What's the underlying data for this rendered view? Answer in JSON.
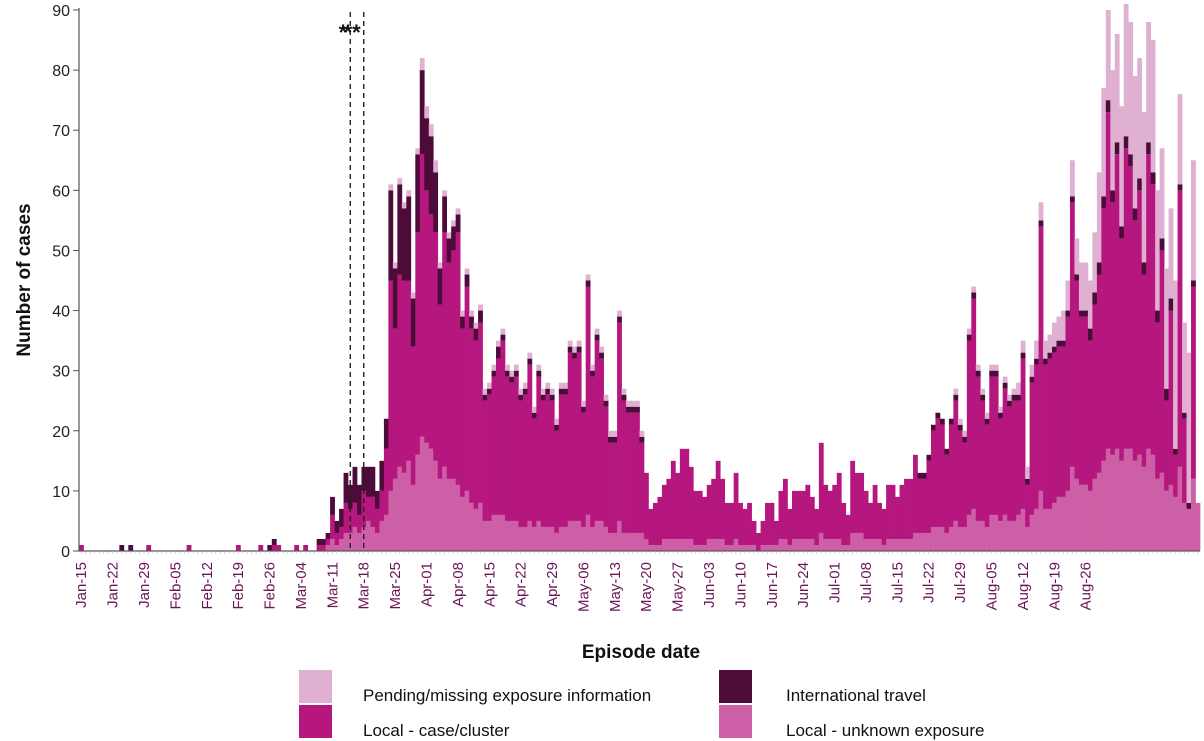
{
  "chart_data": {
    "type": "stacked-bar",
    "xlabel": "Episode date",
    "ylabel": "Number of cases",
    "ylim": [
      0,
      90
    ],
    "yticks": [
      0,
      10,
      20,
      30,
      40,
      50,
      60,
      70,
      80,
      90
    ],
    "grid": false,
    "start_date": "Jan-15",
    "x_tick_labels": [
      "Jan-15",
      "Jan-22",
      "Jan-29",
      "Feb-05",
      "Feb-12",
      "Feb-19",
      "Feb-26",
      "Mar-04",
      "Mar-11",
      "Mar-18",
      "Mar-25",
      "Apr-01",
      "Apr-08",
      "Apr-15",
      "Apr-22",
      "Apr-29",
      "May-06",
      "May-13",
      "May-20",
      "May-27",
      "Jun-03",
      "Jun-10",
      "Jun-17",
      "Jun-24",
      "Jul-01",
      "Jul-08",
      "Jul-15",
      "Jul-22",
      "Jul-29",
      "Aug-05",
      "Aug-12",
      "Aug-19",
      "Aug-26"
    ],
    "annotations": [
      {
        "label": "*",
        "date": "Mar-16"
      },
      {
        "label": "**",
        "date": "Mar-19"
      }
    ],
    "legend_position": "bottom",
    "series": [
      {
        "name": "Local - unknown exposure",
        "color": "#cc5fa5",
        "values": [
          0,
          0,
          0,
          0,
          0,
          0,
          0,
          0,
          0,
          0,
          0,
          0,
          0,
          0,
          0,
          0,
          0,
          0,
          0,
          0,
          0,
          0,
          0,
          0,
          0,
          0,
          0,
          0,
          0,
          0,
          0,
          0,
          0,
          0,
          0,
          0,
          0,
          0,
          0,
          0,
          0,
          0,
          0,
          0,
          0,
          0,
          0,
          0,
          0,
          0,
          0,
          0,
          0,
          0,
          0,
          0,
          0,
          0,
          0,
          0,
          0,
          0,
          0,
          0,
          0,
          0,
          0,
          0,
          0,
          0,
          0,
          0,
          0,
          0,
          0,
          0,
          0,
          0,
          0,
          0,
          0,
          0,
          0,
          0,
          0,
          0,
          0,
          0,
          0,
          0,
          0,
          0,
          0,
          0,
          0,
          0,
          0,
          0,
          0,
          0,
          0,
          0,
          0,
          0,
          0,
          0,
          0,
          0,
          0,
          0,
          0,
          0,
          0,
          0,
          0,
          0,
          0,
          0,
          0,
          0,
          0,
          0,
          0,
          0,
          0,
          0,
          0,
          0,
          0,
          0,
          0,
          0,
          0,
          0,
          0,
          0,
          0,
          0,
          0,
          0,
          0,
          0,
          0,
          0,
          0,
          0,
          0,
          0,
          0,
          0,
          0,
          0,
          0,
          0,
          0,
          0,
          0,
          0,
          0,
          0,
          0,
          0,
          0,
          0,
          0,
          0,
          0,
          0,
          0,
          0,
          0,
          0,
          0,
          0,
          0,
          0,
          0,
          0,
          0,
          0,
          0,
          0,
          0,
          0,
          0,
          0,
          0,
          0,
          0,
          0,
          0,
          0,
          0,
          0,
          0,
          0,
          0,
          0,
          0,
          0,
          0,
          0,
          0,
          0,
          0,
          0,
          0,
          0,
          0,
          0,
          0,
          0,
          0,
          0,
          0,
          0,
          0,
          0,
          0,
          0,
          0,
          0,
          0,
          0,
          0,
          0,
          0,
          0,
          0,
          0,
          0,
          0,
          0,
          0,
          0,
          0,
          0,
          0,
          0,
          0,
          0,
          0,
          0,
          0,
          0
        ]
      },
      {
        "name": "Local - case/cluster",
        "color": "#b5177f",
        "values": [
          0
        ]
      },
      {
        "name": "International travel",
        "color": "#4d0b3a",
        "values": [
          0
        ]
      },
      {
        "name": "Pending/missing exposure information",
        "color": "#dfb0d2",
        "values": [
          0
        ]
      }
    ],
    "daily": {
      "total": [
        1,
        0,
        0,
        0,
        0,
        0,
        0,
        0,
        0,
        1,
        0,
        1,
        0,
        0,
        0,
        1,
        0,
        0,
        0,
        0,
        0,
        0,
        0,
        0,
        1,
        0,
        0,
        0,
        0,
        0,
        0,
        0,
        0,
        0,
        0,
        1,
        0,
        0,
        0,
        0,
        1,
        0,
        1,
        2,
        1,
        0,
        0,
        0,
        1,
        0,
        1,
        0,
        0,
        2,
        2,
        3,
        9,
        5,
        7,
        13,
        11,
        14,
        11,
        14,
        14,
        14,
        10,
        15,
        22,
        61,
        48,
        62,
        58,
        60,
        43,
        67,
        82,
        74,
        71,
        65,
        48,
        60,
        53,
        55,
        57,
        40,
        47,
        40,
        38,
        41,
        27,
        28,
        31,
        35,
        37,
        31,
        30,
        31,
        27,
        28,
        33,
        24,
        31,
        27,
        28,
        27,
        22,
        28,
        28,
        35,
        34,
        35,
        25,
        46,
        31,
        37,
        34,
        26,
        20,
        20,
        40,
        27,
        25,
        25,
        25,
        20,
        13,
        7,
        8,
        9,
        11,
        12,
        15,
        13,
        17,
        17,
        14,
        10,
        10,
        9,
        11,
        12,
        15,
        12,
        8,
        8,
        13,
        8,
        7,
        8,
        5,
        3,
        5,
        8,
        8,
        5,
        10,
        12,
        7,
        10,
        10,
        10,
        11,
        9,
        7,
        18,
        11,
        10,
        11,
        13,
        8,
        6,
        15,
        13,
        13,
        10,
        8,
        11,
        8,
        7,
        11,
        11,
        9,
        11,
        12,
        12,
        16,
        13,
        13,
        16,
        21,
        23,
        22,
        17,
        22,
        27,
        22,
        20,
        37,
        44,
        31,
        27,
        23,
        31,
        31,
        24,
        29,
        26,
        27,
        28,
        35,
        14,
        31,
        35,
        58,
        35,
        36,
        38,
        39,
        40,
        45,
        65,
        52,
        48,
        48,
        45,
        53,
        63,
        77,
        90,
        80,
        86,
        74,
        91,
        88,
        79,
        82,
        73,
        88,
        85,
        60,
        67,
        47,
        57,
        45,
        76,
        38,
        33,
        65,
        42
      ],
      "travel": [
        0,
        0,
        0,
        0,
        0,
        0,
        0,
        0,
        0,
        1,
        0,
        1,
        0,
        0,
        0,
        0,
        0,
        0,
        0,
        0,
        0,
        0,
        0,
        0,
        0,
        0,
        0,
        0,
        0,
        0,
        0,
        0,
        0,
        0,
        0,
        0,
        0,
        0,
        0,
        0,
        0,
        0,
        1,
        1,
        0,
        0,
        0,
        0,
        0,
        0,
        0,
        0,
        0,
        1,
        1,
        1,
        3,
        2,
        3,
        5,
        4,
        6,
        5,
        4,
        5,
        5,
        3,
        5,
        5,
        15,
        10,
        15,
        12,
        14,
        8,
        13,
        14,
        12,
        13,
        10,
        6,
        6,
        4,
        4,
        3,
        2,
        2,
        2,
        2,
        2,
        1,
        1,
        1,
        2,
        1,
        1,
        1,
        1,
        1,
        1,
        1,
        1,
        1,
        1,
        1,
        1,
        1,
        1,
        1,
        1,
        1,
        1,
        1,
        1,
        1,
        1,
        1,
        1,
        1,
        1,
        1,
        1,
        1,
        1,
        1,
        1,
        0,
        0,
        0,
        0,
        0,
        0,
        0,
        0,
        0,
        0,
        0,
        0,
        0,
        0,
        0,
        0,
        0,
        0,
        0,
        0,
        0,
        0,
        0,
        0,
        0,
        0,
        0,
        0,
        0,
        0,
        0,
        0,
        0,
        0,
        0,
        0,
        0,
        0,
        0,
        0,
        0,
        0,
        0,
        0,
        0,
        0,
        0,
        0,
        0,
        0,
        0,
        0,
        0,
        0,
        0,
        0,
        0,
        0,
        0,
        0,
        0,
        1,
        1,
        1,
        1,
        1,
        1,
        1,
        1,
        1,
        1,
        1,
        1,
        1,
        1,
        1,
        1,
        1,
        1,
        1,
        1,
        1,
        1,
        1,
        1,
        1,
        1,
        1,
        1,
        1,
        1,
        1,
        1,
        1,
        1,
        1,
        1,
        1,
        1,
        2,
        2,
        2,
        2,
        2,
        2,
        2,
        2,
        2,
        2,
        2,
        2,
        2,
        2,
        2,
        2,
        2,
        2,
        2,
        1,
        1,
        1,
        1,
        1,
        1
      ],
      "pending": [
        0,
        0,
        0,
        0,
        0,
        0,
        0,
        0,
        0,
        0,
        0,
        0,
        0,
        0,
        0,
        0,
        0,
        0,
        0,
        0,
        0,
        0,
        0,
        0,
        0,
        0,
        0,
        0,
        0,
        0,
        0,
        0,
        0,
        0,
        0,
        0,
        0,
        0,
        0,
        0,
        0,
        0,
        0,
        0,
        0,
        0,
        0,
        0,
        0,
        0,
        0,
        0,
        0,
        0,
        0,
        0,
        0,
        0,
        0,
        0,
        0,
        0,
        0,
        0,
        0,
        0,
        0,
        0,
        0,
        1,
        1,
        1,
        1,
        1,
        1,
        1,
        2,
        2,
        2,
        2,
        1,
        1,
        1,
        1,
        1,
        1,
        1,
        1,
        1,
        1,
        1,
        1,
        1,
        1,
        1,
        1,
        1,
        1,
        1,
        1,
        1,
        1,
        1,
        1,
        1,
        1,
        1,
        1,
        1,
        1,
        1,
        1,
        1,
        1,
        1,
        1,
        1,
        1,
        1,
        1,
        1,
        1,
        1,
        1,
        1,
        1,
        0,
        0,
        0,
        0,
        0,
        0,
        0,
        0,
        0,
        0,
        0,
        0,
        0,
        0,
        0,
        0,
        0,
        0,
        0,
        0,
        0,
        0,
        0,
        0,
        0,
        0,
        0,
        0,
        0,
        0,
        0,
        0,
        0,
        0,
        0,
        0,
        0,
        0,
        0,
        0,
        0,
        0,
        0,
        0,
        0,
        0,
        0,
        0,
        0,
        0,
        0,
        0,
        0,
        0,
        0,
        0,
        0,
        0,
        0,
        0,
        0,
        0,
        0,
        0,
        0,
        0,
        0,
        0,
        0,
        1,
        1,
        1,
        1,
        1,
        1,
        1,
        1,
        1,
        1,
        1,
        1,
        1,
        1,
        2,
        2,
        2,
        2,
        3,
        3,
        3,
        3,
        4,
        4,
        5,
        5,
        6,
        6,
        8,
        8,
        8,
        10,
        15,
        18,
        15,
        20,
        18,
        20,
        22,
        22,
        22,
        20,
        25,
        20,
        22,
        20,
        15,
        20,
        15,
        28,
        15,
        15,
        25,
        20
      ],
      "unknown": [
        0,
        0,
        0,
        0,
        0,
        0,
        0,
        0,
        0,
        0,
        0,
        0,
        0,
        0,
        0,
        0,
        0,
        0,
        0,
        0,
        0,
        0,
        0,
        0,
        0,
        0,
        0,
        0,
        0,
        0,
        0,
        0,
        0,
        0,
        0,
        0,
        0,
        0,
        0,
        0,
        0,
        0,
        0,
        0,
        0,
        0,
        0,
        0,
        0,
        0,
        0,
        0,
        0,
        0,
        0,
        1,
        2,
        1,
        2,
        3,
        3,
        4,
        3,
        4,
        5,
        4,
        3,
        5,
        6,
        10,
        12,
        14,
        13,
        15,
        11,
        16,
        19,
        18,
        17,
        15,
        12,
        14,
        12,
        12,
        11,
        9,
        10,
        8,
        7,
        8,
        5,
        5,
        6,
        6,
        6,
        5,
        5,
        5,
        4,
        4,
        5,
        4,
        5,
        4,
        4,
        4,
        3,
        4,
        4,
        5,
        5,
        5,
        4,
        6,
        4,
        5,
        5,
        4,
        3,
        3,
        5,
        3,
        3,
        3,
        3,
        3,
        2,
        1,
        1,
        1,
        2,
        2,
        2,
        2,
        2,
        2,
        2,
        1,
        1,
        1,
        2,
        2,
        2,
        2,
        1,
        1,
        2,
        1,
        1,
        1,
        1,
        0,
        1,
        1,
        1,
        1,
        2,
        2,
        1,
        2,
        2,
        2,
        2,
        2,
        1,
        3,
        2,
        2,
        2,
        2,
        1,
        1,
        3,
        3,
        3,
        2,
        2,
        2,
        2,
        1,
        2,
        2,
        2,
        2,
        2,
        2,
        3,
        3,
        3,
        3,
        4,
        4,
        4,
        3,
        4,
        5,
        4,
        4,
        6,
        7,
        5,
        5,
        4,
        6,
        6,
        5,
        6,
        5,
        5,
        6,
        7,
        4,
        6,
        7,
        10,
        7,
        7,
        8,
        9,
        9,
        10,
        14,
        12,
        11,
        11,
        10,
        12,
        13,
        15,
        17,
        16,
        17,
        15,
        17,
        17,
        15,
        16,
        14,
        17,
        16,
        12,
        13,
        10,
        11,
        9,
        14,
        8,
        7,
        12,
        8
      ]
    }
  },
  "legend": [
    {
      "label": "Pending/missing exposure information",
      "color": "#dfb0d2"
    },
    {
      "label": "International travel",
      "color": "#4d0b3a"
    },
    {
      "label": "Local - case/cluster",
      "color": "#b5177f"
    },
    {
      "label": "Local - unknown exposure",
      "color": "#cc5fa5"
    }
  ]
}
